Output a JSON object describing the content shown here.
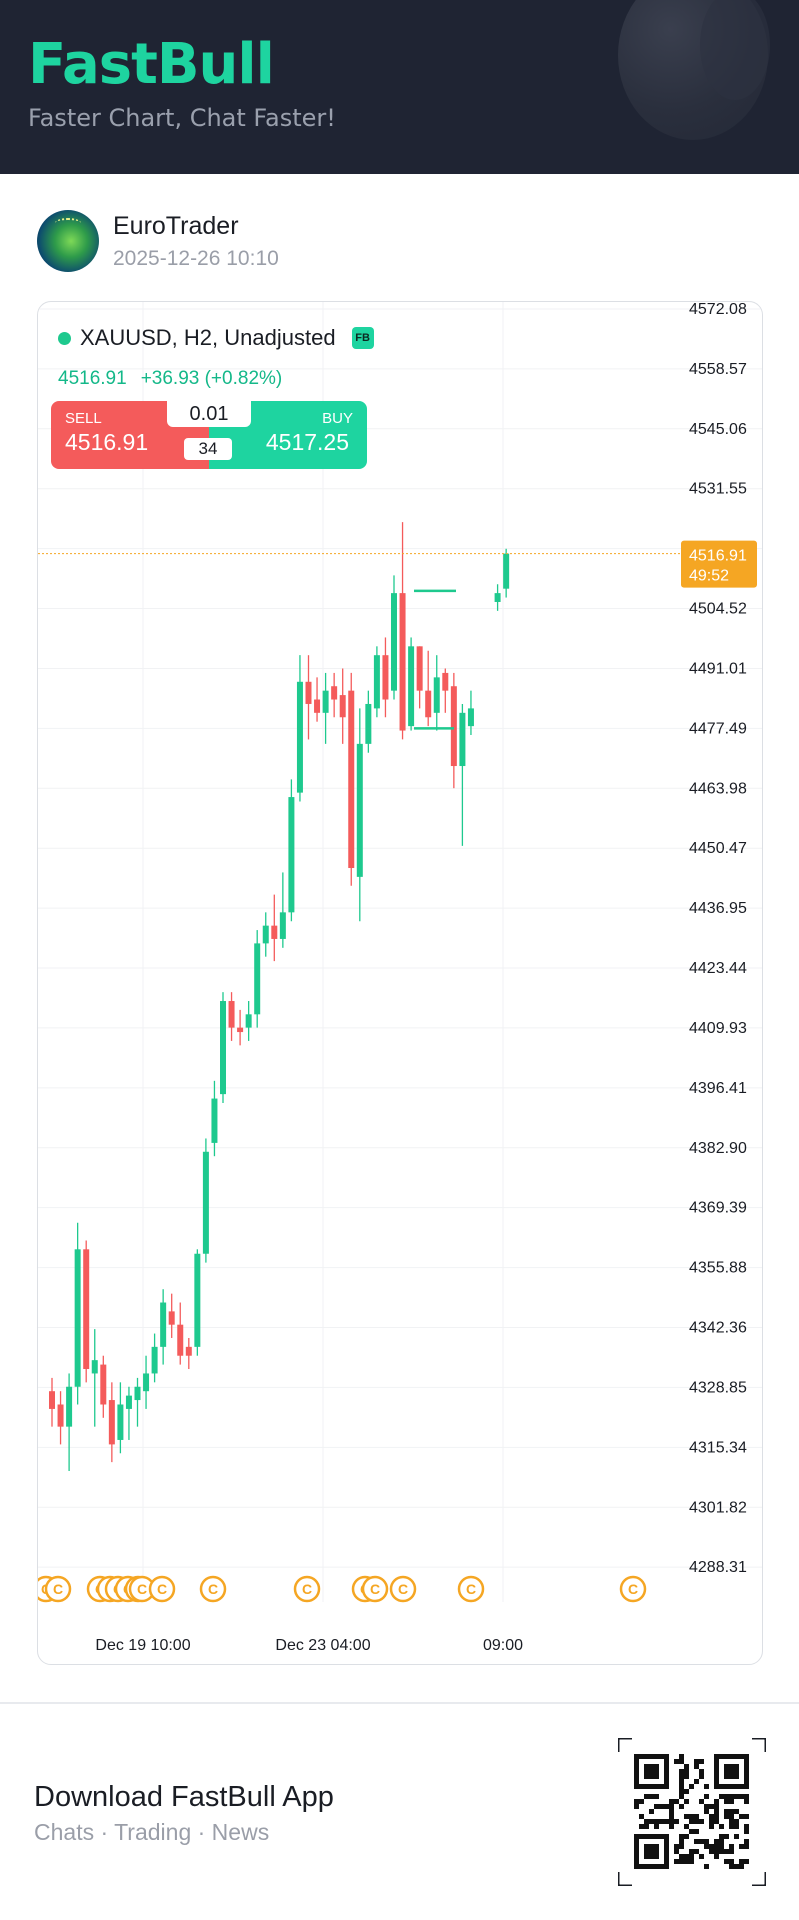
{
  "header": {
    "logo": "FastBull",
    "slogan": "Faster Chart, Chat Faster!"
  },
  "post": {
    "user_name": "EuroTrader",
    "timestamp": "2025-12-26 10:10"
  },
  "chart": {
    "symbol_line": "XAUUSD, H2, Unadjusted",
    "badge": "FB",
    "last_price": "4516.91",
    "change": "+36.93 (+0.82%)",
    "sell_label": "SELL",
    "sell_price": "4516.91",
    "buy_label": "BUY",
    "buy_price": "4517.25",
    "lot_size": "0.01",
    "spread": "34",
    "current_price_tag": "4516.91",
    "countdown": "49:52",
    "colors": {
      "up": "#1ec98e",
      "down": "#f45b5b",
      "price_tag": "#f5a623",
      "event": "#f5a623"
    }
  },
  "chart_data": {
    "type": "candlestick",
    "y_ticks": [
      "4572.08",
      "4558.57",
      "4545.06",
      "4531.55",
      "4504.52",
      "4491.01",
      "4477.49",
      "4463.98",
      "4450.47",
      "4436.95",
      "4423.44",
      "4409.93",
      "4396.41",
      "4382.90",
      "4369.39",
      "4355.88",
      "4342.36",
      "4328.85",
      "4315.34",
      "4301.82",
      "4288.31"
    ],
    "x_ticks": [
      "Dec 19 10:00",
      "Dec 23 04:00",
      "09:00"
    ],
    "ylim": [
      4280,
      4577
    ],
    "current_price": 4516.91,
    "candles": [
      {
        "o": 4328,
        "h": 4331,
        "l": 4320,
        "c": 4324
      },
      {
        "o": 4325,
        "h": 4328,
        "l": 4316,
        "c": 4320
      },
      {
        "o": 4320,
        "h": 4332,
        "l": 4310,
        "c": 4329
      },
      {
        "o": 4329,
        "h": 4366,
        "l": 4325,
        "c": 4360
      },
      {
        "o": 4360,
        "h": 4362,
        "l": 4330,
        "c": 4333
      },
      {
        "o": 4332,
        "h": 4342,
        "l": 4320,
        "c": 4335
      },
      {
        "o": 4334,
        "h": 4336,
        "l": 4322,
        "c": 4325
      },
      {
        "o": 4326,
        "h": 4330,
        "l": 4312,
        "c": 4316
      },
      {
        "o": 4317,
        "h": 4330,
        "l": 4314,
        "c": 4325
      },
      {
        "o": 4324,
        "h": 4329,
        "l": 4317,
        "c": 4327
      },
      {
        "o": 4326,
        "h": 4331,
        "l": 4320,
        "c": 4329
      },
      {
        "o": 4328,
        "h": 4336,
        "l": 4324,
        "c": 4332
      },
      {
        "o": 4332,
        "h": 4341,
        "l": 4330,
        "c": 4338
      },
      {
        "o": 4338,
        "h": 4351,
        "l": 4334,
        "c": 4348
      },
      {
        "o": 4346,
        "h": 4350,
        "l": 4340,
        "c": 4343
      },
      {
        "o": 4343,
        "h": 4348,
        "l": 4334,
        "c": 4336
      },
      {
        "o": 4338,
        "h": 4340,
        "l": 4333,
        "c": 4336
      },
      {
        "o": 4338,
        "h": 4360,
        "l": 4336,
        "c": 4359
      },
      {
        "o": 4359,
        "h": 4385,
        "l": 4357,
        "c": 4382
      },
      {
        "o": 4384,
        "h": 4398,
        "l": 4381,
        "c": 4394
      },
      {
        "o": 4395,
        "h": 4418,
        "l": 4393,
        "c": 4416
      },
      {
        "o": 4416,
        "h": 4418,
        "l": 4407,
        "c": 4410
      },
      {
        "o": 4410,
        "h": 4414,
        "l": 4406,
        "c": 4409
      },
      {
        "o": 4410,
        "h": 4416,
        "l": 4407,
        "c": 4413
      },
      {
        "o": 4413,
        "h": 4432,
        "l": 4410,
        "c": 4429
      },
      {
        "o": 4429,
        "h": 4436,
        "l": 4426,
        "c": 4433
      },
      {
        "o": 4433,
        "h": 4440,
        "l": 4425,
        "c": 4430
      },
      {
        "o": 4430,
        "h": 4445,
        "l": 4428,
        "c": 4436
      },
      {
        "o": 4436,
        "h": 4466,
        "l": 4434,
        "c": 4462
      },
      {
        "o": 4463,
        "h": 4494,
        "l": 4461,
        "c": 4488
      },
      {
        "o": 4488,
        "h": 4494,
        "l": 4475,
        "c": 4483
      },
      {
        "o": 4484,
        "h": 4489,
        "l": 4479,
        "c": 4481
      },
      {
        "o": 4481,
        "h": 4490,
        "l": 4474,
        "c": 4486
      },
      {
        "o": 4487,
        "h": 4490,
        "l": 4480,
        "c": 4484
      },
      {
        "o": 4485,
        "h": 4491,
        "l": 4474,
        "c": 4480
      },
      {
        "o": 4486,
        "h": 4490,
        "l": 4442,
        "c": 4446
      },
      {
        "o": 4444,
        "h": 4482,
        "l": 4434,
        "c": 4474
      },
      {
        "o": 4474,
        "h": 4486,
        "l": 4472,
        "c": 4483
      },
      {
        "o": 4482,
        "h": 4496,
        "l": 4480,
        "c": 4494
      },
      {
        "o": 4494,
        "h": 4498,
        "l": 4480,
        "c": 4484
      },
      {
        "o": 4486,
        "h": 4512,
        "l": 4484,
        "c": 4508
      },
      {
        "o": 4508,
        "h": 4524,
        "l": 4475,
        "c": 4477
      },
      {
        "o": 4478,
        "h": 4498,
        "l": 4477,
        "c": 4496
      },
      {
        "o": 4496,
        "h": 4496,
        "l": 4482,
        "c": 4486
      },
      {
        "o": 4486,
        "h": 4495,
        "l": 4478,
        "c": 4480
      },
      {
        "o": 4481,
        "h": 4494,
        "l": 4477,
        "c": 4489
      },
      {
        "o": 4490,
        "h": 4491,
        "l": 4481,
        "c": 4486
      },
      {
        "o": 4487,
        "h": 4490,
        "l": 4464,
        "c": 4469
      },
      {
        "o": 4469,
        "h": 4483,
        "l": 4451,
        "c": 4481
      },
      {
        "o": 4478,
        "h": 4486,
        "l": 4476,
        "c": 4482
      },
      {
        "o": 4506,
        "h": 4510,
        "l": 4504,
        "c": 4508
      },
      {
        "o": 4509,
        "h": 4518,
        "l": 4507,
        "c": 4516.91
      }
    ],
    "event_markers": [
      "C",
      "C",
      "C",
      "C",
      "C",
      "C",
      "C",
      "C",
      "C",
      "C",
      "C",
      "C",
      "C",
      "C",
      "C"
    ]
  },
  "footer": {
    "title": "Download FastBull App",
    "subtitle": "Chats · Trading · News"
  }
}
